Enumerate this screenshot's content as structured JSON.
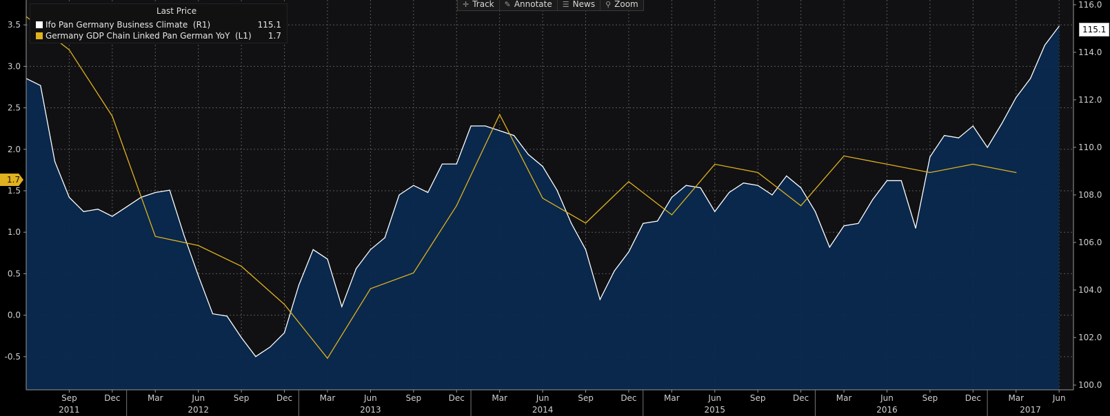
{
  "toolbar": {
    "items": [
      {
        "label": "Track",
        "icon": "crosshair-icon"
      },
      {
        "label": "Annotate",
        "icon": "pencil-icon"
      },
      {
        "label": "News",
        "icon": "news-icon"
      },
      {
        "label": "Zoom",
        "icon": "magnifier-icon"
      }
    ]
  },
  "legend": {
    "header": "Last Price",
    "series": [
      {
        "name": "Ifo Pan Germany Business Climate  (R1)",
        "value": "115.1",
        "color": "#ffffff"
      },
      {
        "name": "Germany GDP Chain Linked Pan German YoY  (L1)",
        "value": "1.7",
        "color": "#e1b21f"
      }
    ]
  },
  "badges": {
    "right_value": "115.1",
    "left_value": "1.7"
  },
  "chart_data": {
    "type": "line",
    "grid": true,
    "left_axis": {
      "ylim": [
        -0.9,
        3.8
      ],
      "ticks": [
        -0.5,
        0.0,
        0.5,
        1.0,
        1.5,
        2.0,
        2.5,
        3.0,
        3.5
      ],
      "tick_labels": [
        "-0.5",
        "0.0",
        "0.5",
        "1.0",
        "1.5",
        "2.0",
        "2.5",
        "3.0",
        "3.5"
      ]
    },
    "right_axis": {
      "ylim": [
        99.8,
        116.2
      ],
      "ticks": [
        100,
        102,
        104,
        106,
        108,
        110,
        112,
        114,
        116
      ],
      "tick_labels": [
        "100.0",
        "102.0",
        "104.0",
        "106.0",
        "108.0",
        "110.0",
        "112.0",
        "114.0",
        "116.0"
      ]
    },
    "x_axis": {
      "range": [
        "2011-06",
        "2017-07"
      ],
      "month_ticks": [
        "2011-09",
        "2011-12",
        "2012-03",
        "2012-06",
        "2012-09",
        "2012-12",
        "2013-03",
        "2013-06",
        "2013-09",
        "2013-12",
        "2014-03",
        "2014-06",
        "2014-09",
        "2014-12",
        "2015-03",
        "2015-06",
        "2015-09",
        "2015-12",
        "2016-03",
        "2016-06",
        "2016-09",
        "2016-12",
        "2017-03",
        "2017-06"
      ],
      "month_labels": [
        "Sep",
        "Dec",
        "Mar",
        "Jun",
        "Sep",
        "Dec",
        "Mar",
        "Jun",
        "Sep",
        "Dec",
        "Mar",
        "Jun",
        "Sep",
        "Dec",
        "Mar",
        "Jun",
        "Sep",
        "Dec",
        "Mar",
        "Jun",
        "Sep",
        "Dec",
        "Mar",
        "Jun"
      ],
      "years": [
        {
          "label": "2011",
          "position": "2011-09"
        },
        {
          "label": "2012",
          "position": "2012-06"
        },
        {
          "label": "2013",
          "position": "2013-06"
        },
        {
          "label": "2014",
          "position": "2014-06"
        },
        {
          "label": "2015",
          "position": "2015-06"
        },
        {
          "label": "2016",
          "position": "2016-06"
        },
        {
          "label": "2017",
          "position": "2017-04"
        }
      ]
    },
    "series": [
      {
        "name": "Ifo Pan Germany Business Climate  (R1)",
        "axis": "right",
        "style": "area",
        "color": "#ffffff",
        "fill": "#0b2a4e",
        "start": "2011-06",
        "values": [
          112.9,
          112.6,
          109.4,
          107.9,
          107.3,
          107.4,
          107.1,
          107.5,
          107.9,
          108.1,
          108.2,
          106.3,
          104.6,
          103.0,
          102.9,
          102.0,
          101.2,
          101.6,
          102.2,
          104.2,
          105.7,
          105.3,
          103.3,
          104.9,
          105.7,
          106.2,
          108.0,
          108.4,
          108.1,
          109.3,
          109.3,
          110.9,
          110.9,
          110.7,
          110.5,
          109.7,
          109.2,
          108.2,
          106.8,
          105.7,
          103.6,
          104.8,
          105.6,
          106.8,
          106.9,
          107.9,
          108.4,
          108.3,
          107.3,
          108.1,
          108.5,
          108.4,
          108.0,
          108.8,
          108.3,
          107.3,
          105.8,
          106.7,
          106.8,
          107.8,
          108.6,
          108.6,
          106.6,
          109.6,
          110.5,
          110.4,
          110.9,
          110.0,
          111.0,
          112.1,
          112.9,
          114.3,
          115.1
        ]
      },
      {
        "name": "Germany GDP Chain Linked Pan German YoY  (L1)",
        "axis": "left",
        "style": "line",
        "color": "#e1b21f",
        "points": [
          {
            "x": "2011-06",
            "y": 3.6
          },
          {
            "x": "2011-09",
            "y": 3.2
          },
          {
            "x": "2011-12",
            "y": 2.4
          },
          {
            "x": "2012-03",
            "y": 0.95
          },
          {
            "x": "2012-06",
            "y": 0.84
          },
          {
            "x": "2012-09",
            "y": 0.59
          },
          {
            "x": "2012-12",
            "y": 0.13
          },
          {
            "x": "2013-03",
            "y": -0.52
          },
          {
            "x": "2013-06",
            "y": 0.32
          },
          {
            "x": "2013-09",
            "y": 0.51
          },
          {
            "x": "2013-12",
            "y": 1.32
          },
          {
            "x": "2014-03",
            "y": 2.42
          },
          {
            "x": "2014-06",
            "y": 1.41
          },
          {
            "x": "2014-09",
            "y": 1.11
          },
          {
            "x": "2014-12",
            "y": 1.61
          },
          {
            "x": "2015-03",
            "y": 1.21
          },
          {
            "x": "2015-06",
            "y": 1.82
          },
          {
            "x": "2015-09",
            "y": 1.72
          },
          {
            "x": "2015-12",
            "y": 1.32
          },
          {
            "x": "2016-03",
            "y": 1.92
          },
          {
            "x": "2016-06",
            "y": 1.82
          },
          {
            "x": "2016-09",
            "y": 1.72
          },
          {
            "x": "2016-12",
            "y": 1.82
          },
          {
            "x": "2017-03",
            "y": 1.72
          }
        ]
      }
    ]
  }
}
